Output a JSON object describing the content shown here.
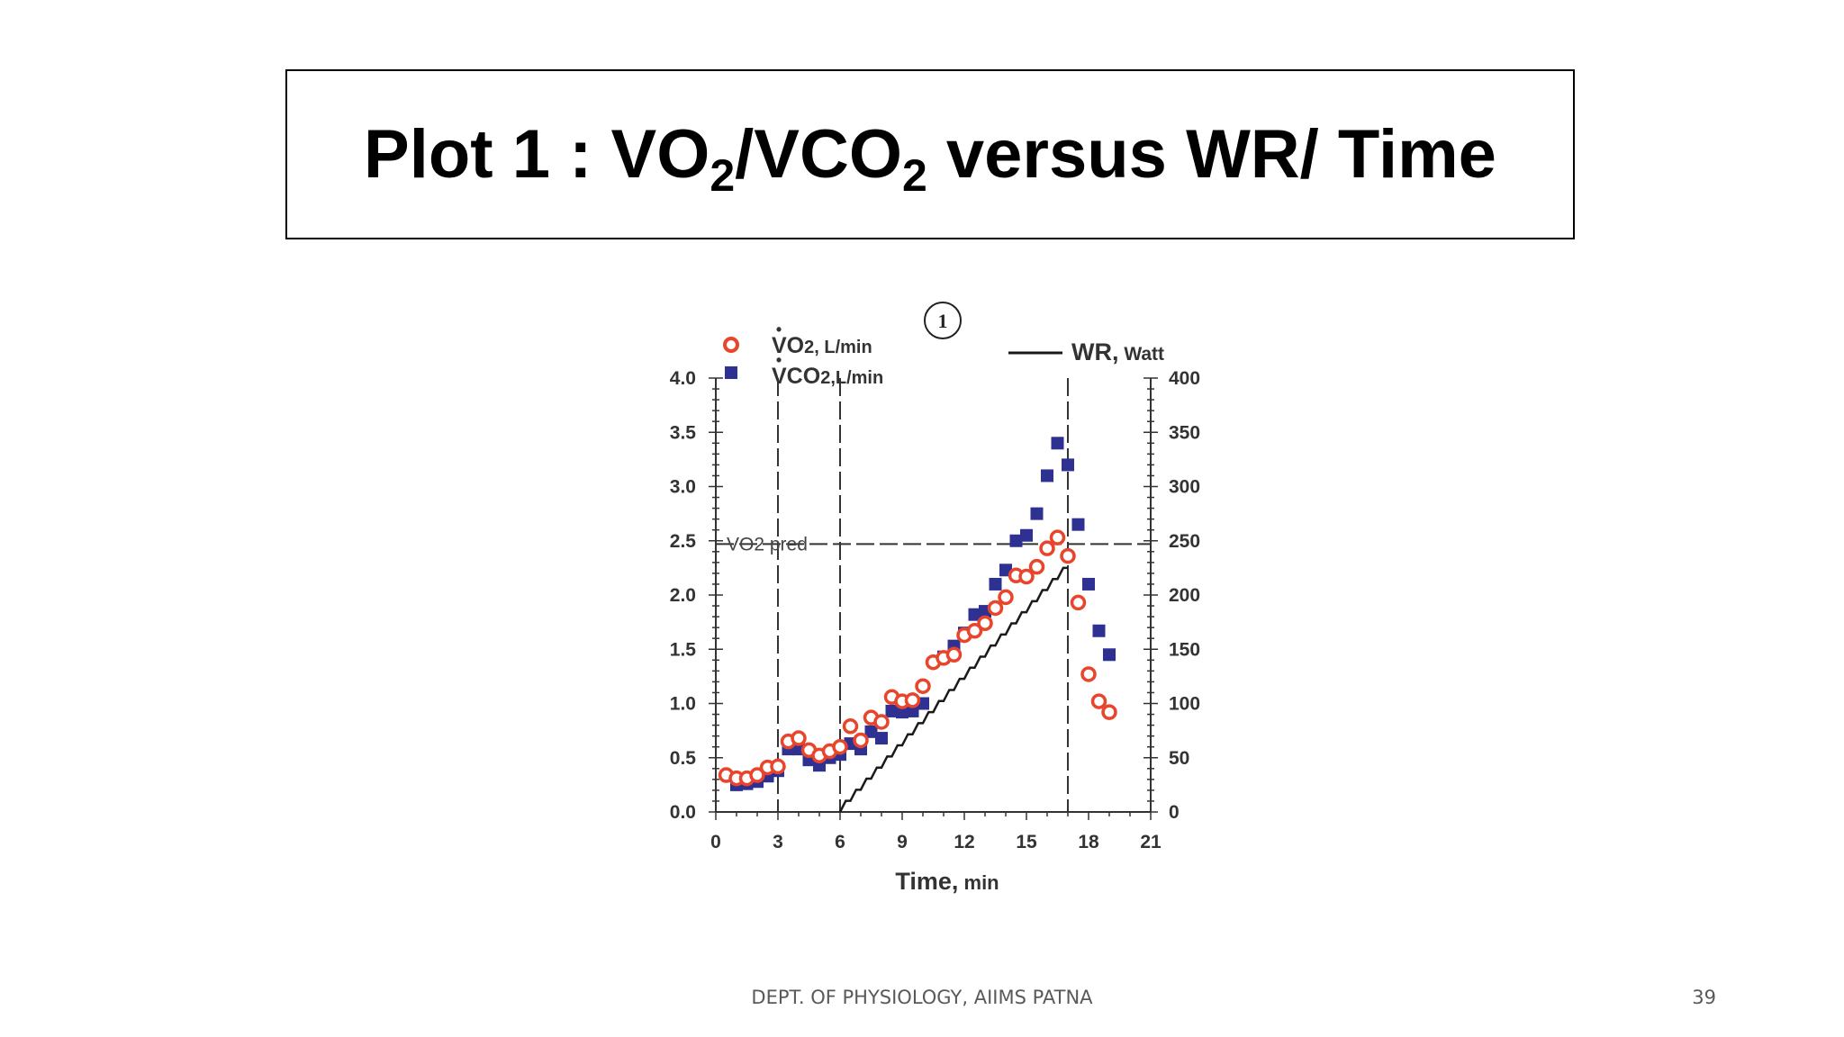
{
  "slide": {
    "title_pre": "Plot 1 : VO",
    "title_sub1": "2",
    "title_mid": "/VCO",
    "title_sub2": "2",
    "title_post": " versus WR/ Time",
    "footer": "DEPT. OF PHYSIOLOGY, AIIMS PATNA",
    "page_number": "39"
  },
  "chart_data": {
    "type": "scatter",
    "panel_marker": "1",
    "xlabel_main": "Time,",
    "xlabel_unit": " min",
    "x_ticks": [
      0,
      3,
      6,
      9,
      12,
      15,
      18,
      21
    ],
    "xlim": [
      0,
      21
    ],
    "y_left_ticks": [
      "0.0",
      "0.5",
      "1.0",
      "1.5",
      "2.0",
      "2.5",
      "3.0",
      "3.5",
      "4.0"
    ],
    "ylim_left": [
      0,
      4
    ],
    "y_right_ticks": [
      "0",
      "50",
      "100",
      "150",
      "200",
      "250",
      "300",
      "350",
      "400"
    ],
    "ylim_right": [
      0,
      400
    ],
    "legend": {
      "vo2": "VO",
      "vo2_sub": "2",
      "vo2_unit": ", L/min",
      "vco2": "VCO",
      "vco2_sub": "2",
      "vco2_unit": ",L/min",
      "wr": "WR,",
      "wr_unit": " Watt"
    },
    "annotation": "VO2 pred",
    "vo2_pred": 2.47,
    "phase_lines_x": [
      3,
      6,
      17
    ],
    "colors": {
      "vo2": "#e8452c",
      "vco2": "#2e3192",
      "wr": "#1a1a1a"
    },
    "series": [
      {
        "name": "VO2, L/min",
        "marker": "open-circle",
        "x": [
          0.5,
          1.0,
          1.5,
          2.0,
          2.5,
          3.0,
          3.5,
          4.0,
          4.5,
          5.0,
          5.5,
          6.0,
          6.5,
          7.0,
          7.5,
          8.0,
          8.5,
          9.0,
          9.5,
          10.0,
          10.5,
          11.0,
          11.5,
          12.0,
          12.5,
          13.0,
          13.5,
          14.0,
          14.5,
          15.0,
          15.5,
          16.0,
          16.5,
          17.0,
          17.5,
          18.0,
          18.5,
          19.0
        ],
        "y": [
          0.34,
          0.31,
          0.31,
          0.34,
          0.41,
          0.42,
          0.65,
          0.68,
          0.57,
          0.52,
          0.56,
          0.6,
          0.79,
          0.66,
          0.87,
          0.83,
          1.06,
          1.02,
          1.03,
          1.16,
          1.38,
          1.42,
          1.45,
          1.63,
          1.67,
          1.74,
          1.88,
          1.98,
          2.18,
          2.17,
          2.26,
          2.43,
          2.53,
          2.36,
          1.93,
          1.27,
          1.02,
          0.92
        ]
      },
      {
        "name": "VCO2, L/min",
        "marker": "filled-square",
        "x": [
          1.0,
          1.5,
          2.0,
          2.5,
          3.0,
          3.5,
          4.0,
          4.5,
          5.0,
          5.5,
          6.0,
          6.5,
          7.0,
          7.5,
          8.0,
          8.5,
          9.0,
          9.5,
          10.0,
          11.0,
          11.5,
          12.0,
          12.5,
          13.0,
          13.5,
          14.0,
          14.5,
          15.0,
          15.5,
          16.0,
          16.5,
          17.0,
          17.5,
          18.0,
          18.5,
          19.0
        ],
        "y": [
          0.25,
          0.26,
          0.28,
          0.33,
          0.38,
          0.58,
          0.58,
          0.48,
          0.43,
          0.5,
          0.53,
          0.63,
          0.58,
          0.74,
          0.68,
          0.93,
          0.92,
          0.93,
          1.0,
          1.43,
          1.53,
          1.65,
          1.82,
          1.85,
          2.1,
          2.23,
          2.5,
          2.55,
          2.75,
          3.1,
          3.4,
          3.2,
          2.65,
          2.1,
          1.67,
          1.45
        ]
      },
      {
        "name": "WR, Watt",
        "marker": "line",
        "start_time": 6,
        "end_time": 17,
        "start_watts": 0,
        "end_watts": 225,
        "steps": 22
      }
    ]
  }
}
